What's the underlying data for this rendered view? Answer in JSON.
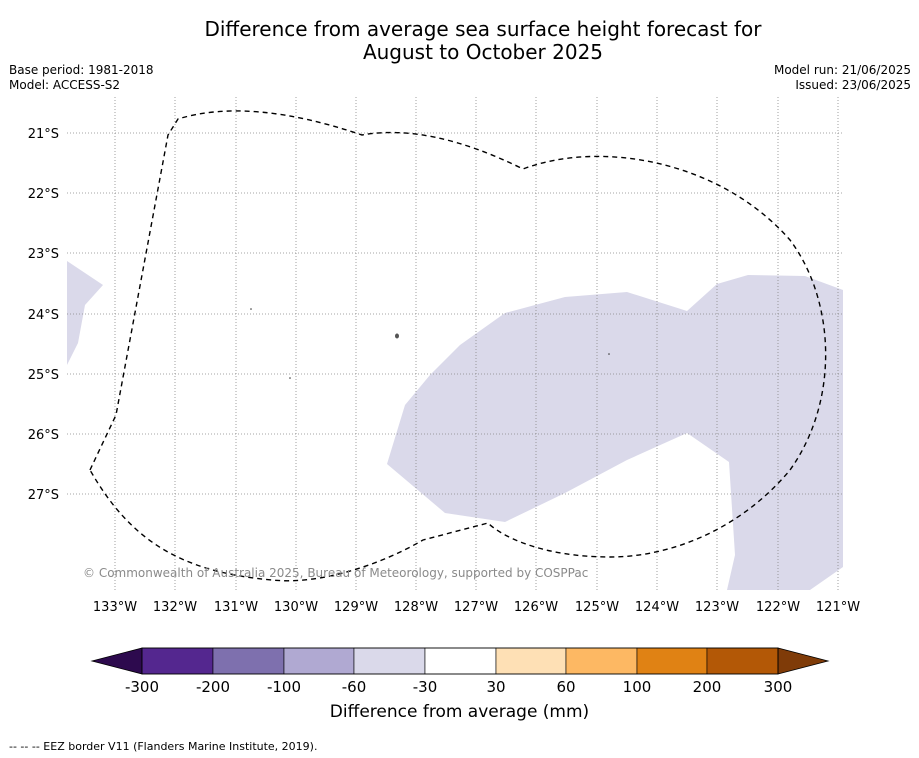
{
  "title_line1": "Difference from average sea surface height forecast for",
  "title_line2": "August to October 2025",
  "meta_left": {
    "base_period": "Base period: 1981-2018",
    "model": "Model: ACCESS-S2"
  },
  "meta_right": {
    "model_run": "Model run: 21/06/2025",
    "issued": "Issued: 23/06/2025"
  },
  "copyright": "© Commonwealth of Australia 2025, Bureau of Meteorology, supported by COSPPac",
  "map": {
    "lon_labels": [
      "133°W",
      "132°W",
      "131°W",
      "130°W",
      "129°W",
      "128°W",
      "127°W",
      "126°W",
      "125°W",
      "124°W",
      "123°W",
      "122°W",
      "121°W"
    ],
    "lat_labels": [
      "21°S",
      "22°S",
      "23°S",
      "24°S",
      "25°S",
      "26°S",
      "27°S"
    ],
    "grid": "on",
    "eez_style": "dashed"
  },
  "colorbar": {
    "label": "Difference from average (mm)",
    "tick_labels": [
      "-300",
      "-200",
      "-100",
      "-60",
      "-30",
      "30",
      "60",
      "100",
      "200",
      "300"
    ],
    "colors": [
      "#2d0a4e",
      "#54278f",
      "#7e70ae",
      "#b0a9d2",
      "#dad9ea",
      "#ffffff",
      "#fee0b5",
      "#fdb863",
      "#e08214",
      "#b35806",
      "#7f3b08"
    ]
  },
  "footnote": "--  --  -- EEZ border V11 (Flanders Marine Institute, 2019)."
}
